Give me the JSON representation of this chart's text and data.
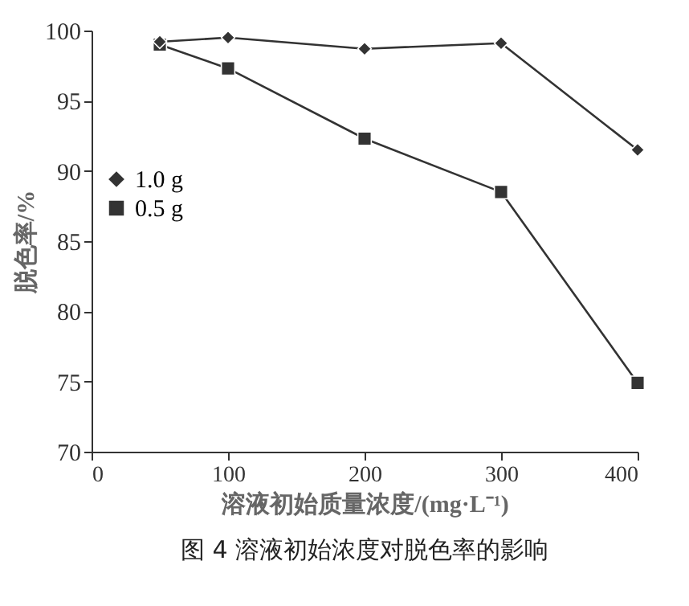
{
  "chart_data": {
    "type": "line",
    "title": "图 4  溶液初始浓度对脱色率的影响",
    "xlabel": "溶液初始质量浓度/(mg·L⁻¹)",
    "ylabel": "脱色率/%",
    "x": [
      50,
      100,
      200,
      300,
      400
    ],
    "series": [
      {
        "name": "1.0 g",
        "color": "#333333",
        "marker": "diamond",
        "values": [
          99.2,
          99.5,
          98.7,
          99.1,
          91.5
        ]
      },
      {
        "name": "0.5 g",
        "color": "#333333",
        "marker": "square",
        "values": [
          99.0,
          97.3,
          92.3,
          88.5,
          74.9
        ]
      }
    ],
    "xlim": [
      0,
      400
    ],
    "xticks": [
      0,
      100,
      200,
      300,
      400
    ],
    "ylim": [
      70,
      100
    ],
    "yticks": [
      70,
      75,
      80,
      85,
      90,
      95,
      100
    ],
    "grid": false,
    "legend": "top left",
    "line_style": "solid"
  }
}
